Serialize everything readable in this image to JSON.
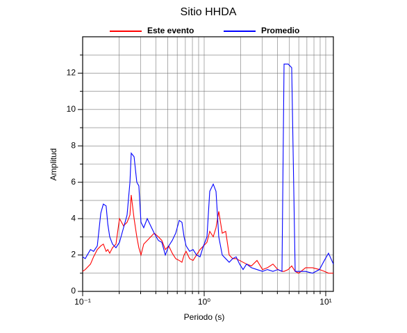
{
  "chart_data": {
    "type": "line",
    "title": "Sitio HHDA",
    "xlabel": "Periodo (s)",
    "ylabel": "Amplitud",
    "x": [
      0.1,
      0.105,
      0.116,
      0.123,
      0.132,
      0.141,
      0.148,
      0.156,
      0.161,
      0.167,
      0.176,
      0.188,
      0.201,
      0.217,
      0.232,
      0.245,
      0.251,
      0.265,
      0.279,
      0.29,
      0.302,
      0.318,
      0.34,
      0.363,
      0.388,
      0.42,
      0.448,
      0.479,
      0.511,
      0.546,
      0.583,
      0.623,
      0.656,
      0.683,
      0.71,
      0.759,
      0.81,
      0.865,
      0.924,
      0.987,
      1.054,
      1.111,
      1.187,
      1.251,
      1.318,
      1.408,
      1.503,
      1.606,
      1.715,
      1.832,
      1.956,
      2.089,
      2.232,
      2.447,
      2.719,
      3.02,
      3.311,
      3.679,
      4.034,
      4.365,
      4.541,
      4.914,
      5.248,
      5.605,
      5.985,
      6.829,
      7.789,
      8.884,
      9.74,
      10.54,
      11.56
    ],
    "series": [
      {
        "name": "Este evento",
        "color": "#ff0000",
        "values": [
          1.1,
          1.2,
          1.5,
          1.9,
          2.3,
          2.5,
          2.6,
          2.2,
          2.3,
          2.1,
          2.4,
          2.6,
          4.0,
          3.6,
          3.8,
          4.2,
          5.3,
          4.0,
          3.0,
          2.4,
          2.0,
          2.6,
          2.8,
          3.0,
          3.2,
          3.0,
          2.8,
          2.3,
          2.5,
          2.1,
          1.8,
          1.7,
          1.6,
          2.0,
          2.2,
          1.8,
          1.7,
          2.0,
          2.3,
          2.5,
          2.7,
          3.3,
          3.0,
          3.5,
          4.4,
          3.2,
          3.3,
          2.0,
          1.8,
          1.8,
          1.7,
          1.6,
          1.5,
          1.4,
          1.7,
          1.2,
          1.3,
          1.5,
          1.2,
          1.1,
          1.1,
          1.2,
          1.4,
          1.1,
          1.0,
          1.3,
          1.3,
          1.2,
          1.1,
          1.0,
          1.0
        ]
      },
      {
        "name": "Promedio",
        "color": "#0000ff",
        "values": [
          1.9,
          1.8,
          2.3,
          2.2,
          2.5,
          4.3,
          4.8,
          4.7,
          3.7,
          3.0,
          2.6,
          2.4,
          2.7,
          3.5,
          4.2,
          6.0,
          7.6,
          7.4,
          6.0,
          5.8,
          3.8,
          3.5,
          4.0,
          3.6,
          3.2,
          2.8,
          2.7,
          2.0,
          2.5,
          2.8,
          3.2,
          3.9,
          3.8,
          3.0,
          2.5,
          2.2,
          2.3,
          2.0,
          1.9,
          2.5,
          3.0,
          5.5,
          5.9,
          5.5,
          3.0,
          2.0,
          1.8,
          1.6,
          1.8,
          1.9,
          1.5,
          1.2,
          1.5,
          1.3,
          1.2,
          1.1,
          1.2,
          1.1,
          1.2,
          1.1,
          12.5,
          12.5,
          12.3,
          1.1,
          1.1,
          1.1,
          1.0,
          1.2,
          1.7,
          2.1,
          1.5
        ]
      }
    ],
    "xlim": [
      0.1,
      11.56
    ],
    "xlog": true,
    "xticks": [
      {
        "value": 0.1,
        "label": "10⁻¹"
      },
      {
        "value": 1,
        "label": "10⁰"
      },
      {
        "value": 10,
        "label": "10¹"
      }
    ],
    "xminor": [
      0.2,
      0.3,
      0.4,
      0.5,
      0.6,
      0.7,
      0.8,
      0.9,
      2,
      3,
      4,
      5,
      6,
      7,
      8,
      9
    ],
    "ylim": [
      0,
      14
    ],
    "yticks": [
      0,
      2,
      4,
      6,
      8,
      10,
      12
    ],
    "yminor": [
      1,
      3,
      5,
      7,
      9,
      11,
      13
    ],
    "grid": true,
    "legend": "top"
  }
}
